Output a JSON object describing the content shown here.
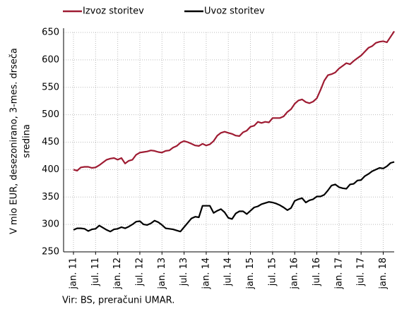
{
  "chart_data": {
    "type": "line",
    "y_label": [
      "V mio EUR, desezonirano, 3-mes. drseča",
      "sredina"
    ],
    "source": "Vir: BS, preračuni UMAR.",
    "categories": [
      "jan. 11",
      null,
      null,
      null,
      null,
      null,
      "jul. 11",
      null,
      null,
      null,
      null,
      null,
      "jan. 12",
      null,
      null,
      null,
      null,
      null,
      "jul. 12",
      null,
      null,
      null,
      null,
      null,
      "jan. 13",
      null,
      null,
      null,
      null,
      null,
      "jul. 13",
      null,
      null,
      null,
      null,
      null,
      "jan. 14",
      null,
      null,
      null,
      null,
      null,
      "jul. 14",
      null,
      null,
      null,
      null,
      null,
      "jan. 15",
      null,
      null,
      null,
      null,
      null,
      "jul. 15",
      null,
      null,
      null,
      null,
      null,
      "jan. 16",
      null,
      null,
      null,
      null,
      null,
      "jul. 16",
      null,
      null,
      null,
      null,
      null,
      "jan. 17",
      null,
      null,
      null,
      null,
      null,
      "jul. 17",
      null,
      null,
      null,
      null,
      null,
      "jan. 18",
      null,
      null,
      null
    ],
    "series": [
      {
        "name": "Izvoz storitev",
        "color": "#9e1b32",
        "values": [
          400,
          398,
          404,
          405,
          405,
          403,
          404,
          408,
          413,
          418,
          420,
          421,
          418,
          421,
          411,
          416,
          418,
          427,
          431,
          432,
          433,
          435,
          434,
          432,
          431,
          434,
          435,
          440,
          443,
          449,
          452,
          450,
          447,
          444,
          443,
          447,
          444,
          446,
          452,
          462,
          467,
          469,
          467,
          465,
          462,
          461,
          468,
          471,
          478,
          480,
          487,
          485,
          487,
          486,
          494,
          494,
          494,
          497,
          505,
          510,
          520,
          526,
          528,
          523,
          521,
          524,
          530,
          545,
          562,
          572,
          574,
          577,
          584,
          589,
          594,
          592,
          598,
          603,
          608,
          615,
          622,
          625,
          631,
          633,
          634,
          632,
          642,
          652
        ]
      },
      {
        "name": "Uvoz storitev",
        "color": "#000000",
        "values": [
          290,
          293,
          293,
          292,
          288,
          291,
          292,
          298,
          294,
          290,
          287,
          291,
          292,
          295,
          293,
          296,
          300,
          305,
          306,
          300,
          299,
          302,
          307,
          304,
          299,
          293,
          292,
          291,
          289,
          287,
          295,
          303,
          311,
          314,
          313,
          334,
          334,
          334,
          321,
          325,
          328,
          322,
          312,
          310,
          320,
          324,
          324,
          319,
          325,
          331,
          333,
          337,
          339,
          341,
          340,
          338,
          335,
          331,
          326,
          330,
          343,
          346,
          348,
          340,
          344,
          346,
          351,
          351,
          354,
          362,
          371,
          373,
          368,
          366,
          365,
          373,
          374,
          380,
          381,
          388,
          392,
          397,
          400,
          403,
          402,
          406,
          412,
          414
        ]
      }
    ],
    "ylim": [
      250,
      650
    ],
    "yticks": [
      250,
      300,
      350,
      400,
      450,
      500,
      550,
      600,
      650
    ],
    "grid": true,
    "legend": "top"
  }
}
